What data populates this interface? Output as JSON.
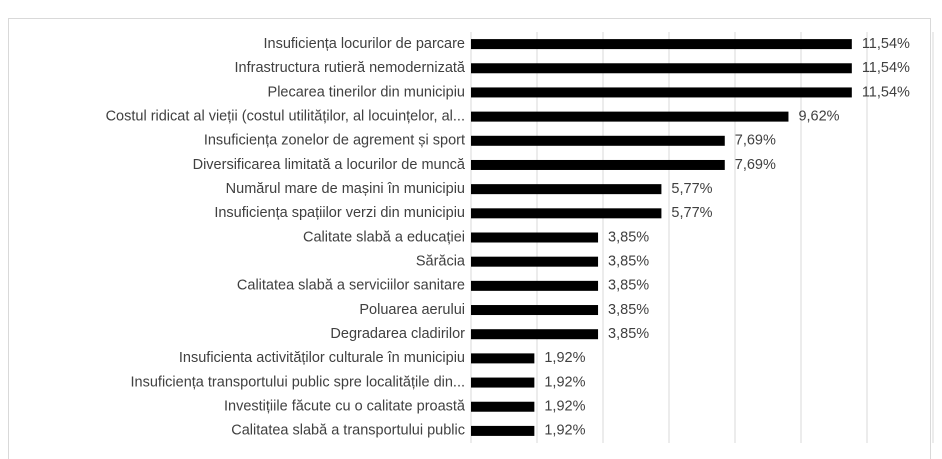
{
  "chart_data": {
    "type": "barh",
    "categories": [
      "Insuficiența locurilor de parcare",
      "Infrastructura rutieră nemodernizată",
      "Plecarea tinerilor din municipiu",
      "Costul ridicat al vieții (costul utilităților, al locuințelor, al...",
      "Insuficiența zonelor de agrement și sport",
      "Diversificarea limitată a locurilor de muncă",
      "Numărul mare de mașini în municipiu",
      "Insuficiența spațiilor verzi din municipiu",
      "Calitate slabă a educației",
      "Sărăcia",
      "Calitatea slabă a serviciilor sanitare",
      "Poluarea aerului",
      "Degradarea cladirilor",
      "Insuficienta activităților culturale în municipiu",
      "Insuficiența transportului public spre localitățile din...",
      "Investițiile făcute cu o calitate proastă",
      "Calitatea slabă a transportului public"
    ],
    "values": [
      11.54,
      11.54,
      11.54,
      9.62,
      7.69,
      7.69,
      5.77,
      5.77,
      3.85,
      3.85,
      3.85,
      3.85,
      3.85,
      1.92,
      1.92,
      1.92,
      1.92
    ],
    "value_labels": [
      "11,54%",
      "11,54%",
      "11,54%",
      "9,62%",
      "7,69%",
      "7,69%",
      "5,77%",
      "5,77%",
      "3,85%",
      "3,85%",
      "3,85%",
      "3,85%",
      "3,85%",
      "1,92%",
      "1,92%",
      "1,92%",
      "1,92%"
    ],
    "color": "#000000",
    "xlim": [
      0,
      14
    ],
    "xticks": [
      0,
      2,
      4,
      6,
      8,
      10,
      12,
      14
    ],
    "grid": true
  }
}
